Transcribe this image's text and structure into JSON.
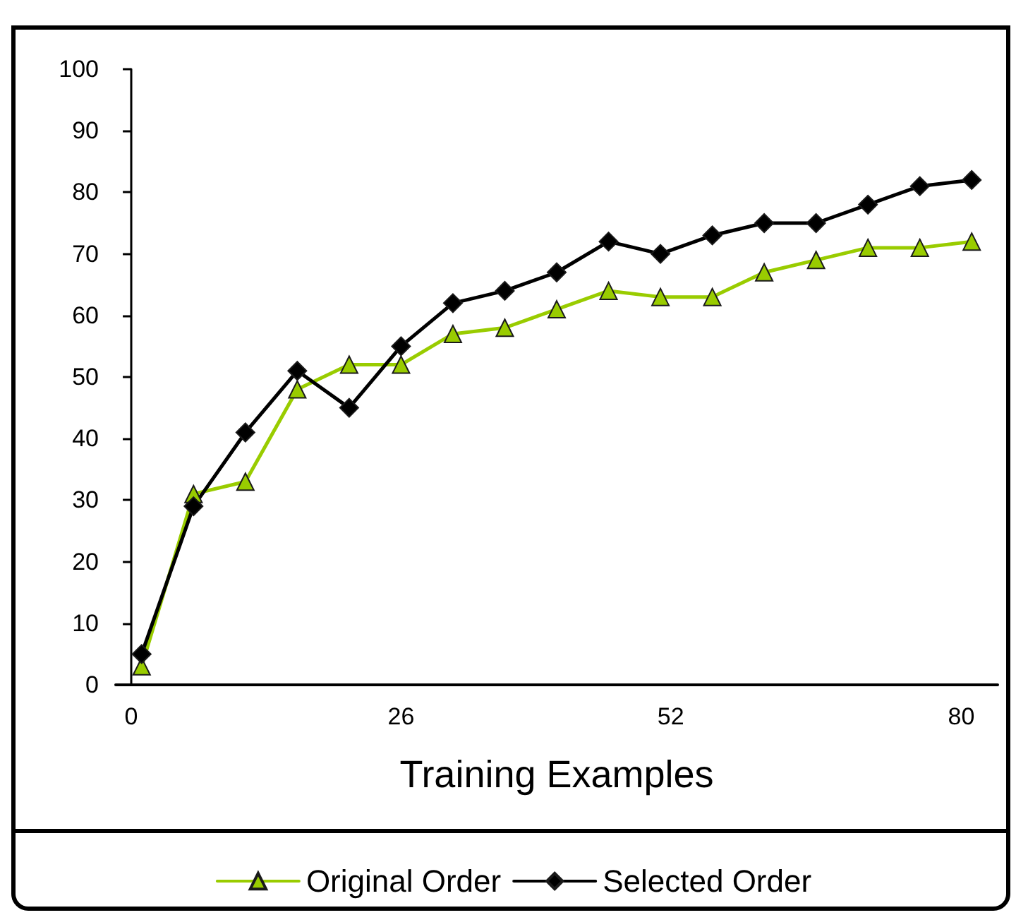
{
  "chart_data": {
    "type": "line",
    "xlabel": "Training Examples",
    "x": [
      1,
      6,
      11,
      16,
      21,
      26,
      31,
      36,
      41,
      46,
      51,
      56,
      61,
      66,
      71,
      76,
      81
    ],
    "xlim": [
      -1.5,
      83.5
    ],
    "xticks": [
      0,
      26,
      52,
      80
    ],
    "ylim": [
      0,
      100
    ],
    "yticks": [
      0,
      10,
      20,
      30,
      40,
      50,
      60,
      70,
      80,
      90,
      100
    ],
    "legend": "bottom",
    "series": [
      {
        "name": "Original Order",
        "color": "#99cc00",
        "marker": "triangle",
        "values": [
          3,
          31,
          33,
          48,
          52,
          52,
          57,
          58,
          61,
          64,
          63,
          63,
          67,
          69,
          71,
          71,
          72
        ]
      },
      {
        "name": "Selected Order",
        "color": "#000000",
        "marker": "diamond",
        "values": [
          5,
          29,
          41,
          51,
          45,
          55,
          62,
          64,
          67,
          72,
          70,
          73,
          75,
          75,
          78,
          81,
          82
        ]
      }
    ]
  }
}
